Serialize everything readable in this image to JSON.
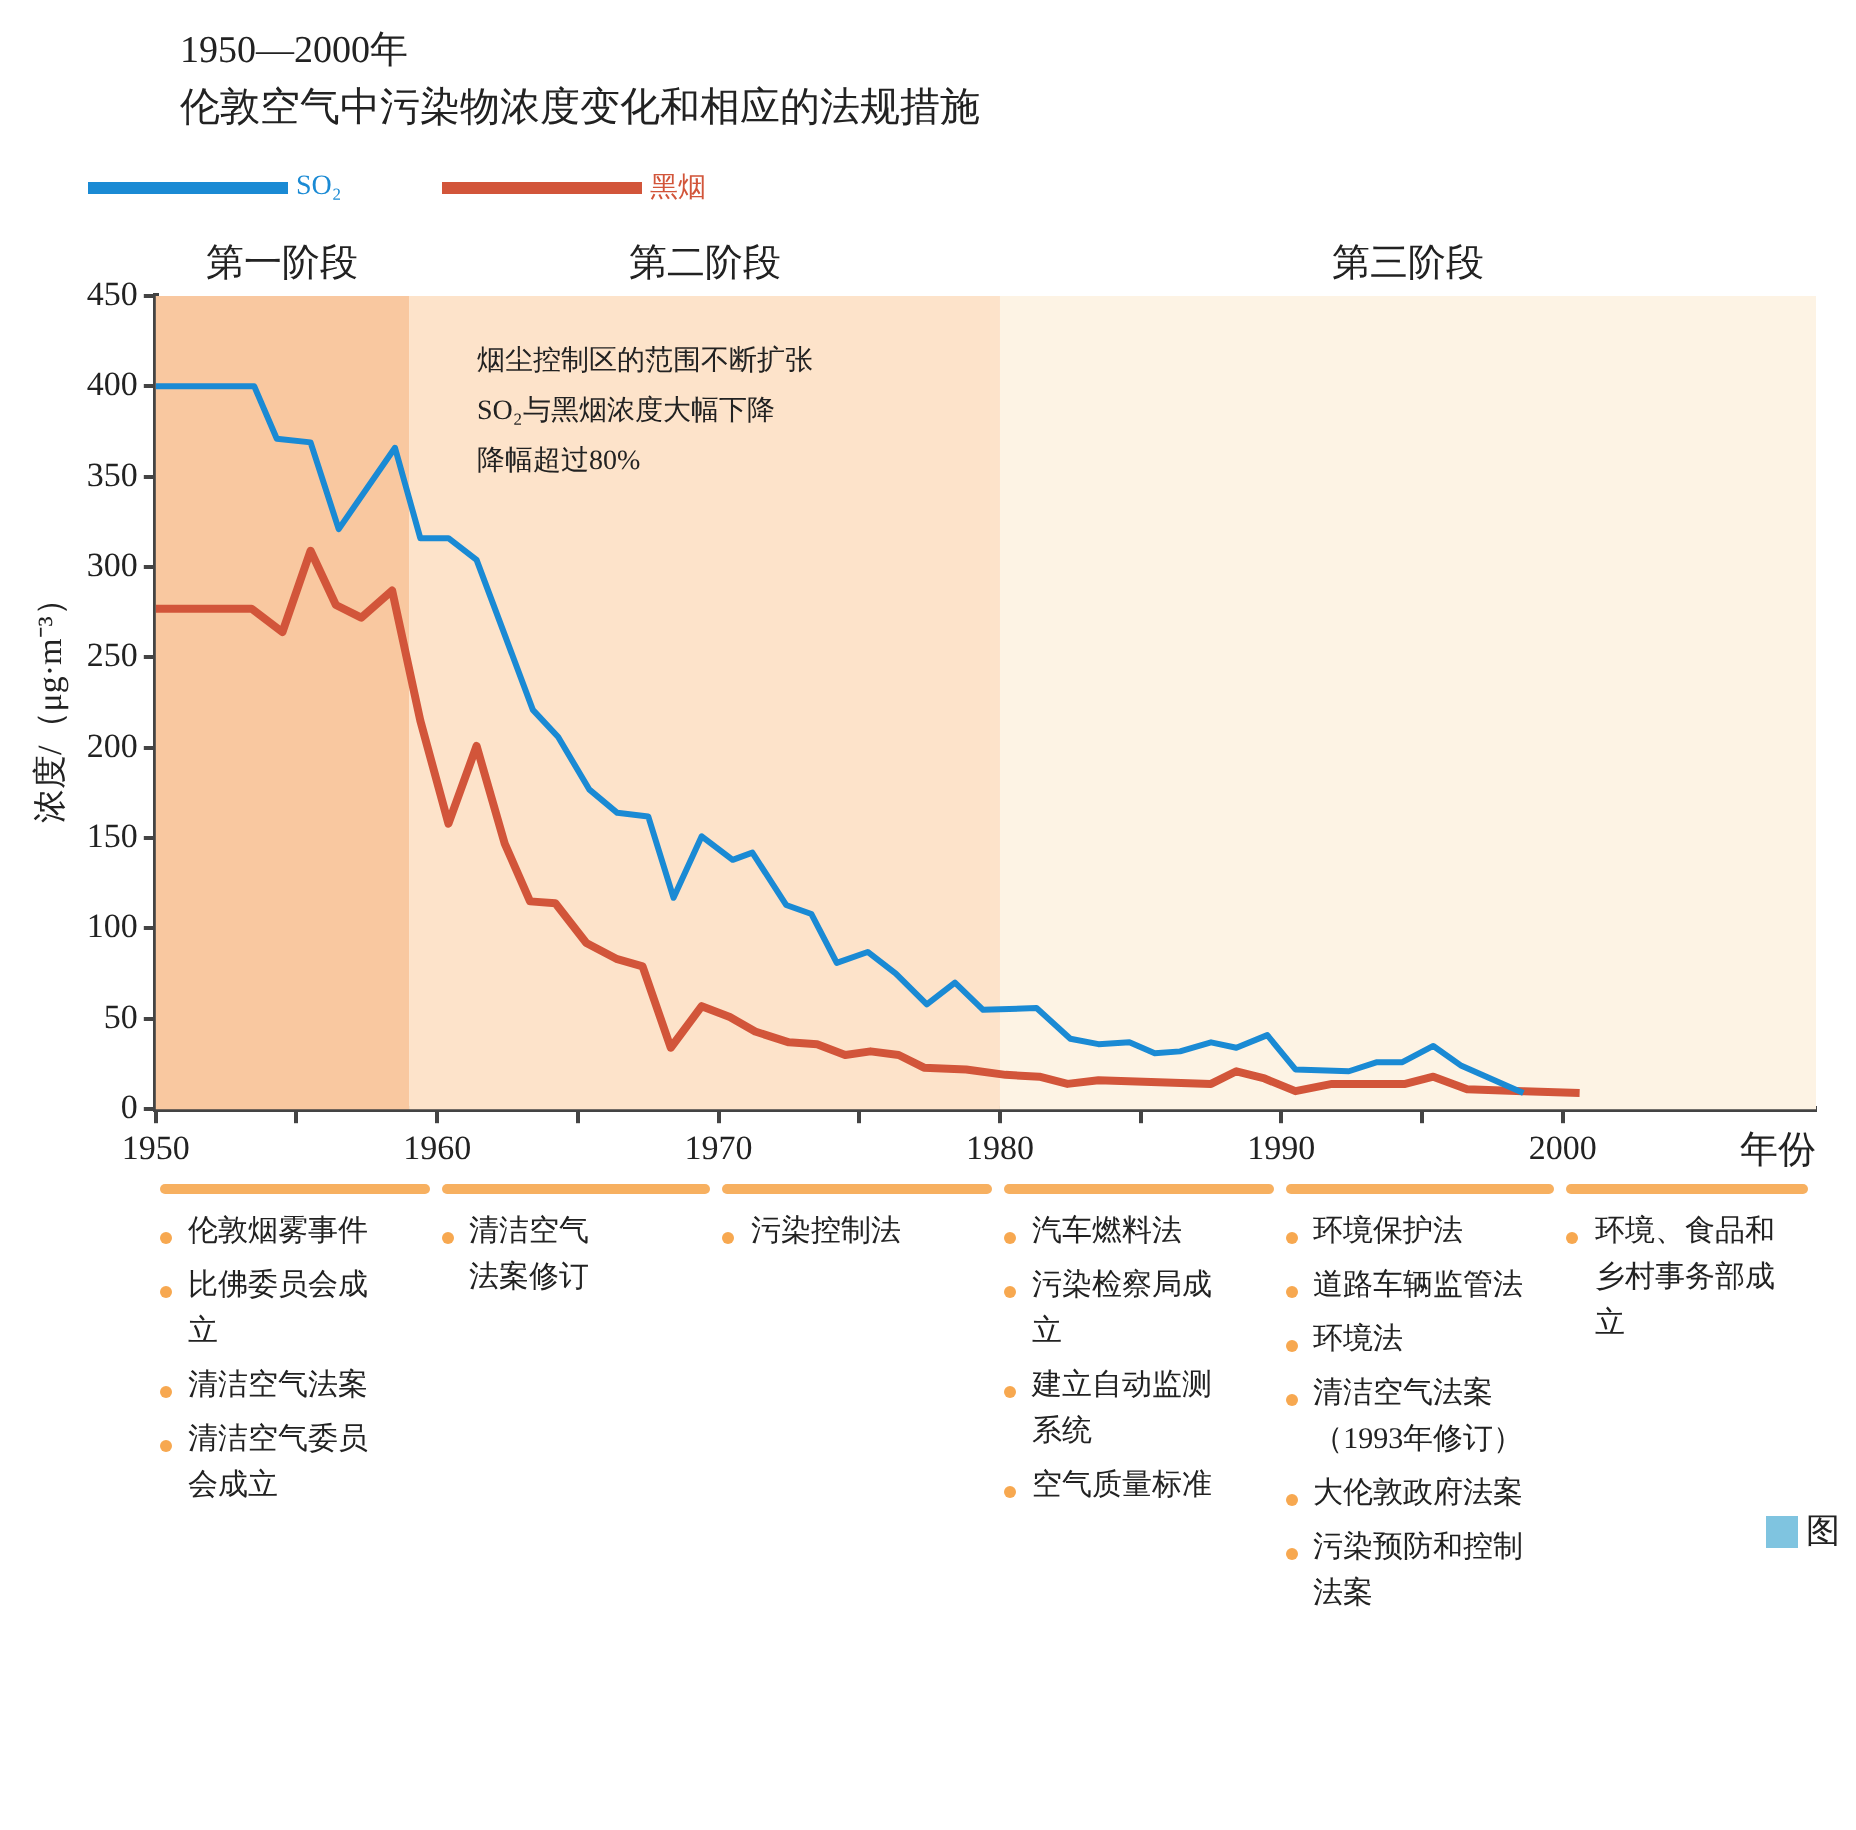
{
  "chart_data": {
    "type": "line",
    "title": "1950—2000年",
    "subtitle": "伦敦空气中污染物浓度变化和相应的法规措施",
    "xlabel": "年份",
    "ylabel": "浓度/（μg·m⁻³）",
    "xlim": [
      1950,
      2009
    ],
    "xticks": [
      1950,
      {
        "value": 1955,
        "label": null
      },
      1960,
      {
        "value": 1965,
        "label": null
      },
      1970,
      {
        "value": 1975,
        "label": null
      },
      1980,
      {
        "value": 1985,
        "label": null
      },
      1990,
      {
        "value": 1995,
        "label": null
      },
      2000
    ],
    "ylim": [
      0,
      450
    ],
    "yticks": [
      0,
      50,
      100,
      150,
      200,
      250,
      300,
      350,
      400,
      450
    ],
    "legend": "top left",
    "series": [
      {
        "name": "SO₂",
        "color": "#1a8ad4",
        "x": [
          1950,
          1953.5,
          1954.3,
          1955.5,
          1956.5,
          1958.5,
          1959.4,
          1960.4,
          1961.4,
          1963.4,
          1964.3,
          1965.4,
          1966.4,
          1967.5,
          1968.4,
          1969.4,
          1970.5,
          1971.2,
          1972.4,
          1973.3,
          1974.2,
          1975.3,
          1976.3,
          1977.4,
          1978.4,
          1979.4,
          1981.3,
          1982.5,
          1983.5,
          1984.6,
          1985.5,
          1986.4,
          1987.5,
          1988.4,
          1989.5,
          1990.5,
          1992.4,
          1993.4,
          1994.3,
          1995.4,
          1996.4,
          1998.6
        ],
        "values": [
          400,
          400,
          371,
          369,
          321,
          366,
          316,
          316,
          304,
          221,
          206,
          177,
          164,
          162,
          117,
          151,
          138,
          142,
          113,
          108,
          81,
          87,
          75,
          58,
          70,
          55,
          56,
          39,
          36,
          37,
          31,
          32,
          37,
          34,
          41,
          22,
          21,
          26,
          26,
          35,
          24,
          9
        ]
      },
      {
        "name": "黑烟",
        "color": "#d2553a",
        "x": [
          1950,
          1953.4,
          1954.5,
          1955.5,
          1956.4,
          1957.3,
          1958.4,
          1959.4,
          1960.4,
          1961.4,
          1962.4,
          1963.3,
          1964.2,
          1965.3,
          1966.4,
          1967.3,
          1968.3,
          1969.4,
          1970.4,
          1971.3,
          1972.5,
          1973.5,
          1974.5,
          1975.4,
          1976.4,
          1977.3,
          1978.8,
          1980.2,
          1981.4,
          1982.4,
          1983.5,
          1987.5,
          1988.4,
          1989.4,
          1990.5,
          1991.8,
          1994.4,
          1995.4,
          1996.6,
          1998.6,
          2000.6
        ],
        "values": [
          277,
          277,
          264,
          309,
          279,
          272,
          287,
          215,
          158,
          201,
          147,
          115,
          114,
          92,
          83,
          79,
          34,
          57,
          51,
          43,
          37,
          36,
          30,
          32,
          30,
          23,
          22,
          19,
          18,
          14,
          16,
          14,
          21,
          17,
          10,
          14,
          14,
          18,
          11,
          10,
          9
        ]
      }
    ],
    "bands": [
      {
        "axis": "x",
        "from": 1950,
        "to": 1959,
        "label": "第一阶段",
        "color": "#f9c8a0"
      },
      {
        "axis": "x",
        "from": 1959,
        "to": 1980,
        "label": "第二阶段",
        "color": "#fde3ca"
      },
      {
        "axis": "x",
        "from": 1980,
        "to": 2009,
        "label": "第三阶段",
        "color": "#fdf3e4"
      }
    ],
    "annotations": [
      "烟尘控制区的范围不断扩张",
      "SO₂与黑烟浓度大幅下降",
      "降幅超过80%",
      "伦敦烟雾事件",
      "比佛委员会成立",
      "清洁空气法案",
      "清洁空气委员会成立",
      "清洁空气法案修订",
      "污染控制法",
      "汽车燃料法",
      "污染检察局成立",
      "建立自动监测系统",
      "空气质量标准",
      "环境保护法",
      "道路车辆监管法",
      "环境法",
      "清洁空气法案（1993年修订）",
      "大伦敦政府法案",
      "污染预防和控制法案",
      "环境、食品和乡村事务部成立",
      "图"
    ]
  }
}
